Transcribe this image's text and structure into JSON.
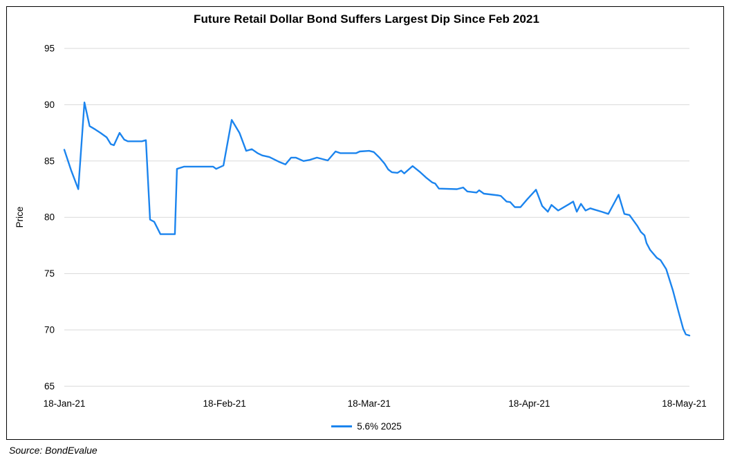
{
  "source_note": "Source: BondEvalue",
  "chart_data": {
    "type": "line",
    "title": "Future Retail Dollar Bond Suffers Largest Dip Since Feb 2021",
    "xlabel": "",
    "ylabel": "Price",
    "x_unit": "days since 18-Jan-2021",
    "xlim": [
      0,
      121
    ],
    "ylim": [
      65,
      95
    ],
    "grid": true,
    "legend_position": "bottom-center",
    "y_ticks": [
      65,
      70,
      75,
      80,
      85,
      90,
      95
    ],
    "x_ticks": [
      {
        "d": 0,
        "label": "18-Jan-21"
      },
      {
        "d": 31,
        "label": "18-Feb-21"
      },
      {
        "d": 59,
        "label": "18-Mar-21"
      },
      {
        "d": 90,
        "label": "18-Apr-21"
      },
      {
        "d": 120,
        "label": "18-May-21"
      }
    ],
    "colors": {
      "line": "#1b84ee",
      "grid": "#d9d9d9",
      "text": "#000000",
      "border": "#000000"
    },
    "series": [
      {
        "name": "5.6% 2025",
        "points": [
          [
            0,
            86.0
          ],
          [
            1.3,
            84.2
          ],
          [
            2.7,
            82.5
          ],
          [
            3.9,
            90.2
          ],
          [
            4.9,
            88.1
          ],
          [
            6,
            87.8
          ],
          [
            7,
            87.5
          ],
          [
            8.2,
            87.1
          ],
          [
            9,
            86.5
          ],
          [
            9.6,
            86.4
          ],
          [
            10.7,
            87.5
          ],
          [
            11.6,
            86.9
          ],
          [
            12.3,
            86.75
          ],
          [
            15,
            86.75
          ],
          [
            15.8,
            86.85
          ],
          [
            16.6,
            79.8
          ],
          [
            17.4,
            79.6
          ],
          [
            18.6,
            78.5
          ],
          [
            21.4,
            78.5
          ],
          [
            21.8,
            84.3
          ],
          [
            23.2,
            84.5
          ],
          [
            28.8,
            84.5
          ],
          [
            29.4,
            84.3
          ],
          [
            30.8,
            84.6
          ],
          [
            32.4,
            88.65
          ],
          [
            33.9,
            87.5
          ],
          [
            35.2,
            85.9
          ],
          [
            36.3,
            86.05
          ],
          [
            37.4,
            85.7
          ],
          [
            38.3,
            85.5
          ],
          [
            39.7,
            85.35
          ],
          [
            41.7,
            84.9
          ],
          [
            42.8,
            84.7
          ],
          [
            43.9,
            85.3
          ],
          [
            44.8,
            85.3
          ],
          [
            46.3,
            85.0
          ],
          [
            47.5,
            85.1
          ],
          [
            48.9,
            85.3
          ],
          [
            51,
            85.05
          ],
          [
            52.5,
            85.85
          ],
          [
            53.4,
            85.7
          ],
          [
            56.5,
            85.7
          ],
          [
            57.2,
            85.85
          ],
          [
            59,
            85.9
          ],
          [
            59.9,
            85.8
          ],
          [
            61,
            85.3
          ],
          [
            62,
            84.76
          ],
          [
            62.7,
            84.25
          ],
          [
            63.4,
            84.0
          ],
          [
            64.5,
            83.95
          ],
          [
            65.2,
            84.15
          ],
          [
            65.8,
            83.9
          ],
          [
            67.4,
            84.55
          ],
          [
            68.9,
            84.0
          ],
          [
            70.1,
            83.5
          ],
          [
            71.2,
            83.1
          ],
          [
            71.8,
            83.0
          ],
          [
            72.5,
            82.55
          ],
          [
            76,
            82.5
          ],
          [
            77.2,
            82.65
          ],
          [
            78,
            82.3
          ],
          [
            79.8,
            82.2
          ],
          [
            80.3,
            82.4
          ],
          [
            81.2,
            82.1
          ],
          [
            84,
            81.95
          ],
          [
            84.5,
            81.9
          ],
          [
            85.6,
            81.4
          ],
          [
            86.3,
            81.35
          ],
          [
            87.2,
            80.9
          ],
          [
            88.3,
            80.9
          ],
          [
            89.6,
            81.6
          ],
          [
            91.3,
            82.45
          ],
          [
            92.5,
            81.0
          ],
          [
            93.6,
            80.5
          ],
          [
            94.3,
            81.1
          ],
          [
            95.6,
            80.6
          ],
          [
            97.8,
            81.2
          ],
          [
            98.5,
            81.4
          ],
          [
            99.2,
            80.5
          ],
          [
            100,
            81.2
          ],
          [
            100.9,
            80.6
          ],
          [
            101.8,
            80.8
          ],
          [
            102.5,
            80.7
          ],
          [
            104,
            80.5
          ],
          [
            105.3,
            80.3
          ],
          [
            107.3,
            82.0
          ],
          [
            108.4,
            80.3
          ],
          [
            109.4,
            80.2
          ],
          [
            110.9,
            79.25
          ],
          [
            111.6,
            78.7
          ],
          [
            112.3,
            78.4
          ],
          [
            112.7,
            77.7
          ],
          [
            113.4,
            77.1
          ],
          [
            114.7,
            76.4
          ],
          [
            115.4,
            76.2
          ],
          [
            116.5,
            75.4
          ],
          [
            117.8,
            73.5
          ],
          [
            118.9,
            71.6
          ],
          [
            119.8,
            70.1
          ],
          [
            120.3,
            69.6
          ],
          [
            121,
            69.5
          ]
        ]
      }
    ]
  }
}
